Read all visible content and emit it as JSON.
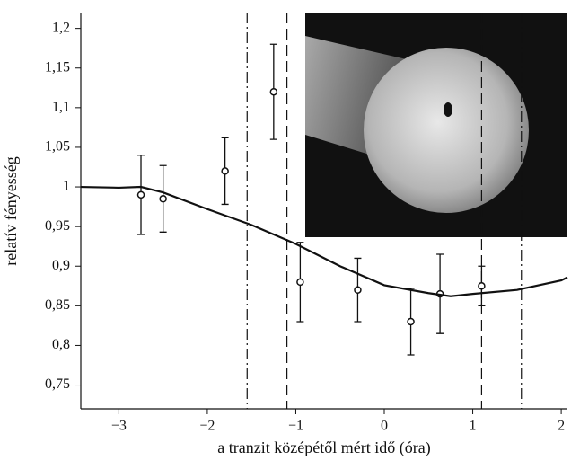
{
  "chart_data": {
    "type": "scatter",
    "xlabel": "a tranzit középétől mért idő (óra)",
    "ylabel": "relatív fényesség",
    "xlim": [
      -3.43,
      2.07
    ],
    "ylim": [
      0.72,
      1.22
    ],
    "xticks": [
      {
        "value": -3,
        "label": "−3"
      },
      {
        "value": -2,
        "label": "−2"
      },
      {
        "value": -1,
        "label": "−1"
      },
      0,
      1,
      2
    ],
    "yticks": [
      {
        "value": 0.75,
        "label": "0,75"
      },
      {
        "value": 0.8,
        "label": "0,8"
      },
      {
        "value": 0.85,
        "label": "0,85"
      },
      {
        "value": 0.9,
        "label": "0,9"
      },
      {
        "value": 0.95,
        "label": "0,95"
      },
      {
        "value": 1,
        "label": "1"
      },
      {
        "value": 1.05,
        "label": "1,05"
      },
      {
        "value": 1.1,
        "label": "1,1"
      },
      {
        "value": 1.15,
        "label": "1,15"
      },
      {
        "value": 1.2,
        "label": "1,2"
      }
    ],
    "color": "#111111",
    "series": [
      {
        "type": "scatter",
        "x": [
          -2.75,
          -2.5,
          -1.8,
          -1.25,
          -0.95,
          -0.3,
          0.3,
          0.63,
          1.1
        ],
        "values": [
          0.99,
          0.985,
          1.02,
          1.12,
          0.88,
          0.87,
          0.83,
          0.865,
          0.875
        ],
        "errors": [
          0.05,
          0.042,
          0.042,
          0.06,
          0.05,
          0.04,
          0.042,
          0.05,
          0.025
        ]
      },
      {
        "type": "line",
        "x": [
          -3.43,
          -3,
          -2.75,
          -2.5,
          -2,
          -1.5,
          -1,
          -0.5,
          0,
          0.5,
          0.75,
          1,
          1.5,
          2,
          2.07
        ],
        "values": [
          1.0,
          0.999,
          1.0,
          0.993,
          0.972,
          0.952,
          0.928,
          0.9,
          0.876,
          0.866,
          0.862,
          0.865,
          0.87,
          0.882,
          0.886
        ]
      }
    ],
    "vlines": [
      {
        "x": -1.55,
        "style": "dashdot"
      },
      {
        "x": -1.1,
        "style": "dashed"
      },
      {
        "x": 1.1,
        "style": "dashed"
      },
      {
        "x": 1.55,
        "style": "dashdot"
      }
    ]
  }
}
